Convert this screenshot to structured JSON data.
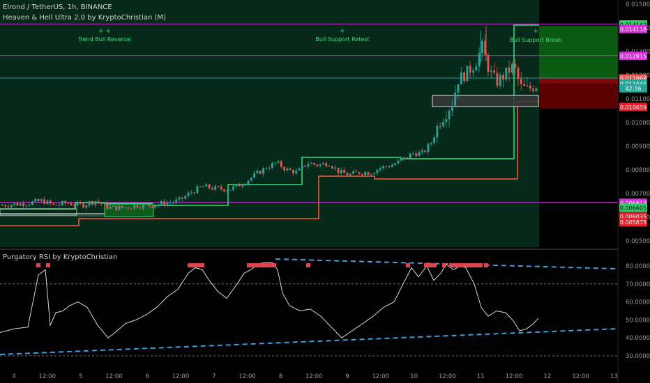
{
  "header": {
    "symbol_line": "Elrond / TetherUS, 1h, BINANCE",
    "indicator_line": "Heaven & Hell Ultra 2.0 by KryptoChristian (M)",
    "rsi_title": "Purgatory RSI by KryptoChristian"
  },
  "colors": {
    "background": "#000000",
    "zone_fill": "#062a1a",
    "magenta": "#c72fd0",
    "support_green": "#34e07a",
    "resistance_red": "#ff5a3c",
    "candle_up": "#26a69a",
    "candle_down": "#ef5350",
    "rsi_line": "#d8d8d8",
    "trend_dash": "#3aa0e0",
    "overbought_marker": "#e0454e"
  },
  "annotations": {
    "signal_1": "Trend Bull Reversal",
    "signal_2": "Bull Support Retest",
    "signal_3": "Bull Support Break",
    "plus_1": "+ +",
    "plus_2": "+",
    "plus_3": "+"
  },
  "price_labels": [
    {
      "text": "0.014142",
      "bg": "#2fd06a",
      "fg": "#000000",
      "price": 0.014142
    },
    {
      "text": "0.014118",
      "bg": "#d62ed8",
      "fg": "#ffffff",
      "price": 0.01395
    },
    {
      "text": "0.012815",
      "bg": "#d62ed8",
      "fg": "#ffffff",
      "price": 0.012815
    },
    {
      "text": "0.011868",
      "bg": "#ef5350",
      "fg": "#ffffff",
      "price": 0.011868
    },
    {
      "text": "0.011645",
      "bg": "#26a69a",
      "fg": "#ffffff",
      "price": 0.011645
    },
    {
      "text": "42:16",
      "bg": "#26a69a",
      "fg": "#ffffff",
      "price": 0.01145
    },
    {
      "text": "0.010659",
      "bg": "#e8212d",
      "fg": "#ffffff",
      "price": 0.010659
    },
    {
      "text": "0.006613",
      "bg": "#d62ed8",
      "fg": "#ffffff",
      "price": 0.006613
    },
    {
      "text": "0.006605",
      "bg": "#2fd06a",
      "fg": "#000000",
      "price": 0.006405
    },
    {
      "text": "0.006035",
      "bg": "#e8212d",
      "fg": "#ffffff",
      "price": 0.006035
    },
    {
      "text": "0.005875",
      "bg": "#e8212d",
      "fg": "#ffffff",
      "price": 0.005795
    }
  ],
  "chart_data": [
    {
      "type": "candlestick",
      "title": "Elrond / TetherUS, 1h, BINANCE",
      "y_ticks": [
        "0.015000",
        "0.014000",
        "0.013000",
        "0.012000",
        "0.011000",
        "0.010000",
        "0.009000",
        "0.008000",
        "0.007000",
        "0.006000",
        "0.005000"
      ],
      "ylim": [
        0.0048,
        0.0153
      ],
      "x_ticks": [
        "4",
        "12:00",
        "5",
        "12:00",
        "6",
        "12:00",
        "7",
        "12:00",
        "8",
        "12:00",
        "9",
        "12:00",
        "10",
        "12:00",
        "11",
        "12:00",
        "12",
        "12:00",
        "13"
      ],
      "resistance_levels": [
        0.014142,
        0.012815,
        0.006613
      ],
      "reference_level": 0.01188,
      "price_path": [
        [
          0,
          0.0065
        ],
        [
          20,
          0.00655
        ],
        [
          40,
          0.0066
        ],
        [
          60,
          0.0067
        ],
        [
          75,
          0.0065
        ],
        [
          95,
          0.0066
        ],
        [
          115,
          0.0065
        ],
        [
          135,
          0.0067
        ],
        [
          155,
          0.0064
        ],
        [
          175,
          0.0064
        ],
        [
          195,
          0.0065
        ],
        [
          215,
          0.0065
        ],
        [
          235,
          0.0066
        ],
        [
          255,
          0.0067
        ],
        [
          275,
          0.0071
        ],
        [
          290,
          0.0073
        ],
        [
          310,
          0.0072
        ],
        [
          330,
          0.0072
        ],
        [
          350,
          0.0075
        ],
        [
          365,
          0.0078
        ],
        [
          380,
          0.0081
        ],
        [
          395,
          0.0083
        ],
        [
          410,
          0.008
        ],
        [
          425,
          0.0079
        ],
        [
          440,
          0.0083
        ],
        [
          455,
          0.0082
        ],
        [
          470,
          0.0083
        ],
        [
          485,
          0.0079
        ],
        [
          500,
          0.0078
        ],
        [
          515,
          0.0079
        ],
        [
          530,
          0.0079
        ],
        [
          545,
          0.0081
        ],
        [
          560,
          0.0082
        ],
        [
          575,
          0.0084
        ],
        [
          590,
          0.0087
        ],
        [
          605,
          0.0087
        ],
        [
          618,
          0.0092
        ],
        [
          628,
          0.01
        ],
        [
          638,
          0.0104
        ],
        [
          648,
          0.0109
        ],
        [
          655,
          0.0118
        ],
        [
          668,
          0.0121
        ],
        [
          680,
          0.0125
        ],
        [
          690,
          0.0132
        ],
        [
          700,
          0.0122
        ],
        [
          710,
          0.0117
        ],
        [
          722,
          0.012
        ],
        [
          735,
          0.0124
        ],
        [
          745,
          0.0115
        ],
        [
          755,
          0.0114
        ],
        [
          765,
          0.01155
        ],
        [
          772,
          0.01165
        ]
      ]
    },
    {
      "type": "line",
      "title": "Purgatory RSI by KryptoChristian",
      "y_ticks": [
        "80.000000",
        "70.000000",
        "60.000000",
        "50.000000",
        "40.000000",
        "30.000000"
      ],
      "ylim": [
        27,
        85
      ],
      "levels": [
        70,
        30
      ],
      "x": [
        0,
        20,
        40,
        55,
        65,
        72,
        80,
        90,
        100,
        112,
        125,
        140,
        155,
        165,
        180,
        195,
        210,
        225,
        240,
        255,
        270,
        280,
        290,
        300,
        312,
        325,
        340,
        350,
        360,
        370,
        380,
        390,
        398,
        405,
        415,
        430,
        445,
        460,
        475,
        490,
        505,
        520,
        535,
        550,
        565,
        578,
        590,
        600,
        612,
        622,
        632,
        640,
        650,
        660,
        668,
        680,
        690,
        700,
        712,
        725,
        735,
        745,
        755,
        765,
        772
      ],
      "values": [
        43,
        45,
        46,
        75,
        78,
        47,
        54,
        55,
        58,
        60,
        57,
        47,
        40,
        43,
        48,
        50,
        53,
        57,
        63,
        67,
        76,
        79,
        78,
        72,
        66,
        62,
        70,
        76,
        78,
        81,
        82,
        82,
        78,
        65,
        58,
        55,
        56,
        52,
        46,
        40,
        44,
        48,
        52,
        57,
        60,
        70,
        79,
        74,
        80,
        72,
        76,
        81,
        78,
        80,
        79,
        70,
        57,
        52,
        55,
        54,
        50,
        44,
        45,
        48,
        51
      ]
    }
  ]
}
